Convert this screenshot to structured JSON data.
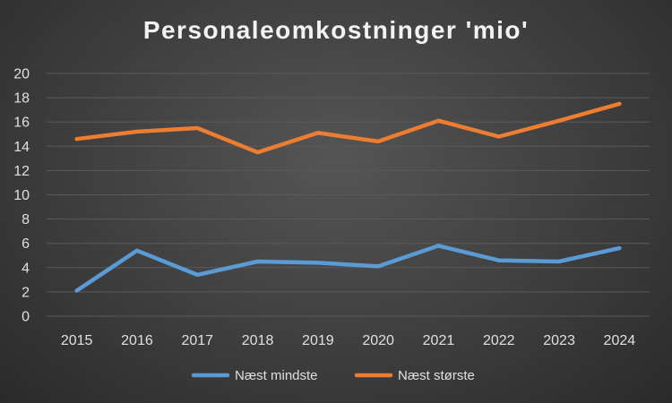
{
  "chart_data": {
    "type": "line",
    "title": "Personaleomkostninger 'mio'",
    "categories": [
      "2015",
      "2016",
      "2017",
      "2018",
      "2019",
      "2020",
      "2021",
      "2022",
      "2023",
      "2024"
    ],
    "series": [
      {
        "name": "Næst mindste",
        "color": "#5b9bd5",
        "values": [
          2.1,
          5.4,
          3.4,
          4.5,
          4.4,
          4.1,
          5.8,
          4.6,
          4.5,
          5.6
        ]
      },
      {
        "name": "Næst største",
        "color": "#ed7d31",
        "values": [
          14.6,
          15.2,
          15.5,
          13.5,
          15.1,
          14.4,
          16.1,
          14.8,
          16.1,
          17.5
        ]
      }
    ],
    "ylim": [
      0,
      20
    ],
    "yticks": [
      0,
      2,
      4,
      6,
      8,
      10,
      12,
      14,
      16,
      18,
      20
    ],
    "grid": true,
    "legend": "bottom",
    "background": "#404040",
    "gridline_color": "#5a5a5a",
    "text_color": "#e0e0e0"
  }
}
